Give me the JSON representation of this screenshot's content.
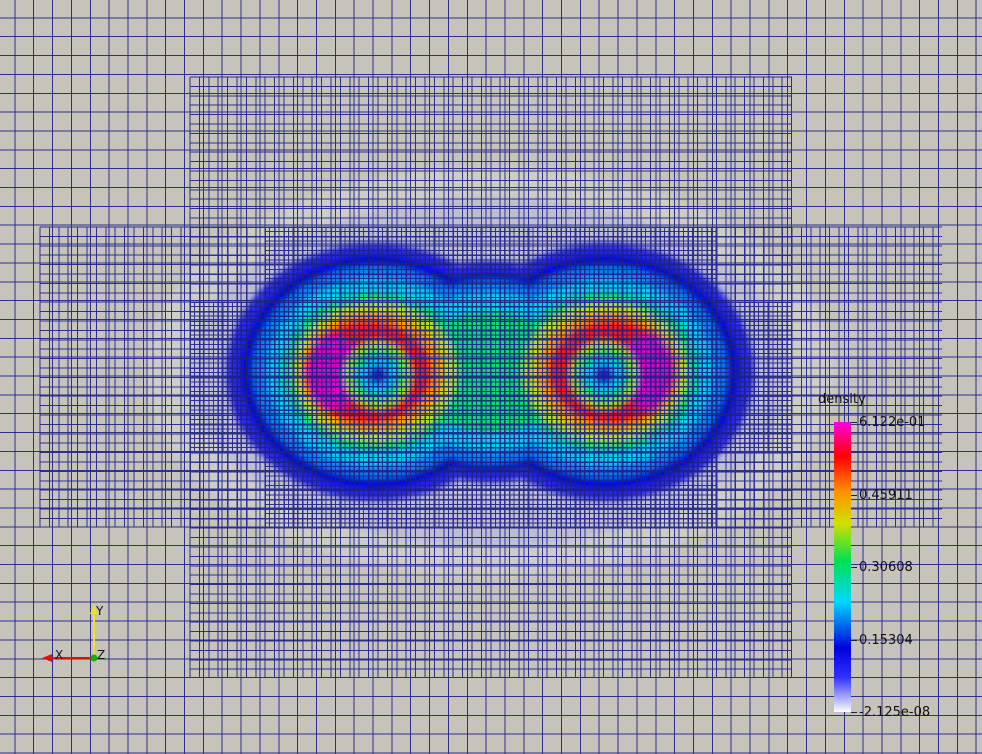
{
  "colors": {
    "background": "#c6c3bb",
    "grid_line": "#1c1f86",
    "x_axis": "#e01010",
    "y_axis": "#f0e020",
    "z_axis": "#10b010"
  },
  "scalar_bar": {
    "title": "density",
    "labels": [
      "6.122e-01",
      "0.45911",
      "0.30608",
      "0.15304",
      "-2.125e-08"
    ],
    "values": [
      0.6122,
      0.45911,
      0.30608,
      0.15304,
      -2.125e-08
    ],
    "range": [
      -2.125e-08,
      0.6122
    ]
  },
  "orientation_axes": {
    "x_label": "X",
    "y_label": "Y",
    "z_label": "Z"
  }
}
